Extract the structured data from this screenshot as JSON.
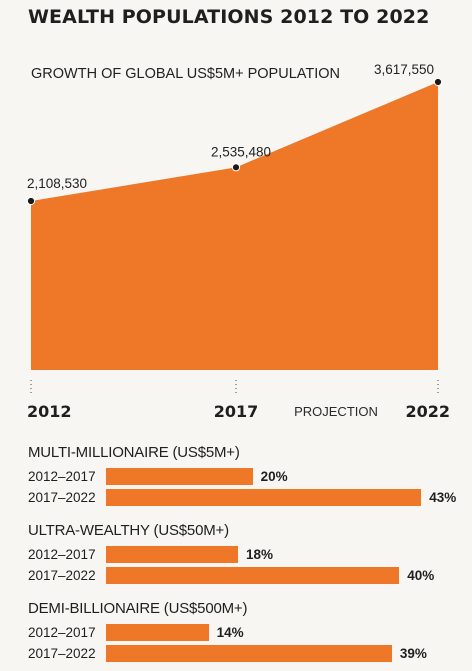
{
  "title": "WEALTH POPULATIONS 2012 TO 2022",
  "colors": {
    "accent": "#ee7728",
    "text": "#1f1f1f",
    "background": "#f7f6f2"
  },
  "chart_data": [
    {
      "type": "area",
      "title": "GROWTH OF GLOBAL US$5M+ POPULATION",
      "x": [
        "2012",
        "2017",
        "2022"
      ],
      "values": [
        2108530,
        2535480,
        3617550
      ],
      "data_labels": [
        "2,108,530",
        "2,535,480",
        "3,617,550"
      ],
      "annotation": "PROJECTION",
      "ylim": [
        0,
        3800000
      ]
    },
    {
      "type": "bar",
      "orientation": "horizontal",
      "groups": [
        {
          "title": "MULTI-MILLIONAIRE (US$5M+)",
          "rows": [
            {
              "label": "2012–2017",
              "value": 20,
              "value_label": "20%"
            },
            {
              "label": "2017–2022",
              "value": 43,
              "value_label": "43%"
            }
          ]
        },
        {
          "title": "ULTRA-WEALTHY (US$50M+)",
          "rows": [
            {
              "label": "2012–2017",
              "value": 18,
              "value_label": "18%"
            },
            {
              "label": "2017–2022",
              "value": 40,
              "value_label": "40%"
            }
          ]
        },
        {
          "title": "DEMI-BILLIONAIRE (US$500M+)",
          "rows": [
            {
              "label": "2012–2017",
              "value": 14,
              "value_label": "14%"
            },
            {
              "label": "2017–2022",
              "value": 39,
              "value_label": "39%"
            }
          ]
        }
      ]
    }
  ]
}
